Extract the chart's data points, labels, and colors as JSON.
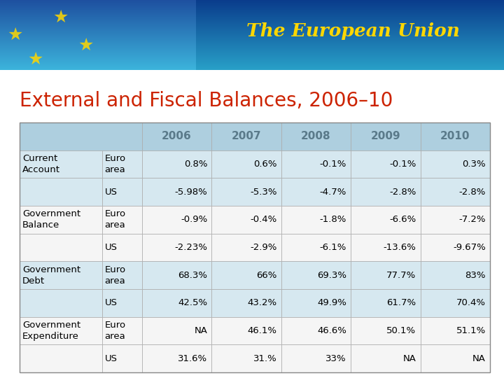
{
  "title_top": "The European Union",
  "title_main": "External and Fiscal Balances, 2006–10",
  "header_bg": "#aecfdf",
  "row_bg_blue": "#d6e8f0",
  "row_bg_white": "#f5f5f5",
  "header_year_color": "#5a7a8a",
  "title_color": "#cc2200",
  "banner_blue": "#1a6cb0",
  "header_years": [
    "2006",
    "2007",
    "2008",
    "2009",
    "2010"
  ],
  "table_data": [
    [
      "Current\nAccount",
      "Euro\narea",
      "0.8%",
      "0.6%",
      "-0.1%",
      "-0.1%",
      "0.3%"
    ],
    [
      "",
      "US",
      "-5.98%",
      "-5.3%",
      "-4.7%",
      "-2.8%",
      "-2.8%"
    ],
    [
      "Government\nBalance",
      "Euro\narea",
      "-0.9%",
      "-0.4%",
      "-1.8%",
      "-6.6%",
      "-7.2%"
    ],
    [
      "",
      "US",
      "-2.23%",
      "-2.9%",
      "-6.1%",
      "-13.6%",
      "-9.67%"
    ],
    [
      "Government\nDebt",
      "Euro\narea",
      "68.3%",
      "66%",
      "69.3%",
      "77.7%",
      "83%"
    ],
    [
      "",
      "US",
      "42.5%",
      "43.2%",
      "49.9%",
      "61.7%",
      "70.4%"
    ],
    [
      "Government\nExpenditure",
      "Euro\narea",
      "NA",
      "46.1%",
      "46.6%",
      "50.1%",
      "51.1%"
    ],
    [
      "",
      "US",
      "31.6%",
      "31.%",
      "33%",
      "NA",
      "NA"
    ]
  ],
  "bg_color": "#f0f0f0",
  "font_size_table": 9.5,
  "font_size_title": 20,
  "font_size_header_year": 11
}
